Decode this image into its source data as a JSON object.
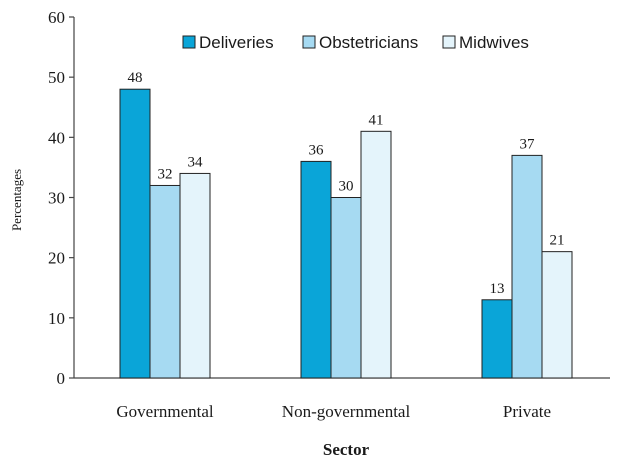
{
  "chart_data": {
    "type": "bar",
    "categories": [
      "Governmental",
      "Non-governmental",
      "Private"
    ],
    "series": [
      {
        "name": "Deliveries",
        "values": [
          48,
          36,
          13
        ],
        "color": "#0aa5d8"
      },
      {
        "name": "Obstetricians",
        "values": [
          32,
          30,
          37
        ],
        "color": "#a6daf2"
      },
      {
        "name": "Midwives",
        "values": [
          34,
          41,
          21
        ],
        "color": "#e4f4fb"
      }
    ],
    "xlabel": "Sector",
    "ylabel": "Percentages",
    "ylim": [
      0,
      60
    ],
    "yticks": [
      0,
      10,
      20,
      30,
      40,
      50,
      60
    ],
    "grid": false,
    "legend_position": "top-right",
    "data_labels": true,
    "bar_border_color": "#222222"
  }
}
